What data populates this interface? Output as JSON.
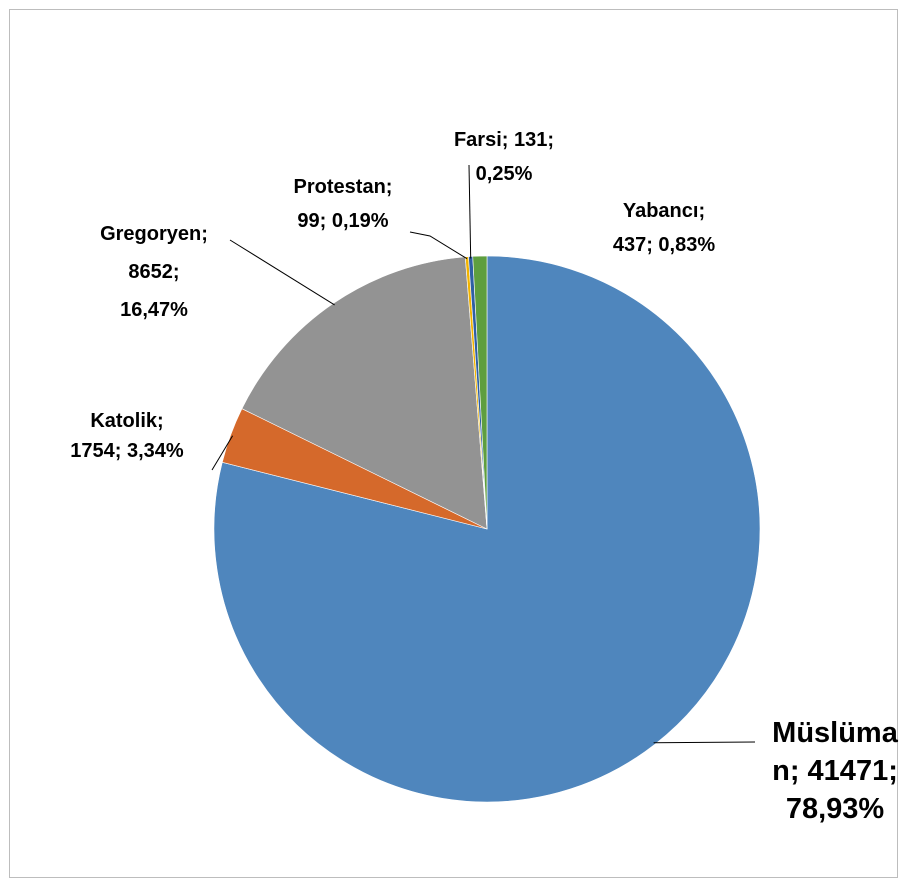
{
  "chart_data": {
    "type": "pie",
    "title": "",
    "slices": [
      {
        "name": "Müslüman",
        "value": 41471,
        "percent": "78,93%",
        "color": "#4f86bd",
        "label_lines": [
          "Müslüma",
          "n; 41471;",
          "78,93%"
        ]
      },
      {
        "name": "Katolik",
        "value": 1754,
        "percent": "3,34%",
        "color": "#d5692b",
        "label_lines": [
          "Katolik;",
          "1754; 3,34%"
        ]
      },
      {
        "name": "Gregoryen",
        "value": 8652,
        "percent": "16,47%",
        "color": "#939393",
        "label_lines": [
          "Gregoryen;",
          "8652;",
          "16,47%"
        ]
      },
      {
        "name": "Protestan",
        "value": 99,
        "percent": "0,19%",
        "color": "#f2b400",
        "label_lines": [
          "Protestan;",
          "99; 0,19%"
        ]
      },
      {
        "name": "Farsi",
        "value": 131,
        "percent": "0,25%",
        "color": "#2f5fa3",
        "label_lines": [
          "Farsi; 131;",
          "0,25%"
        ]
      },
      {
        "name": "Yabancı",
        "value": 437,
        "percent": "0,83%",
        "color": "#5e9e3f",
        "label_lines": [
          "Yabancı;",
          "437; 0,83%"
        ]
      }
    ]
  }
}
